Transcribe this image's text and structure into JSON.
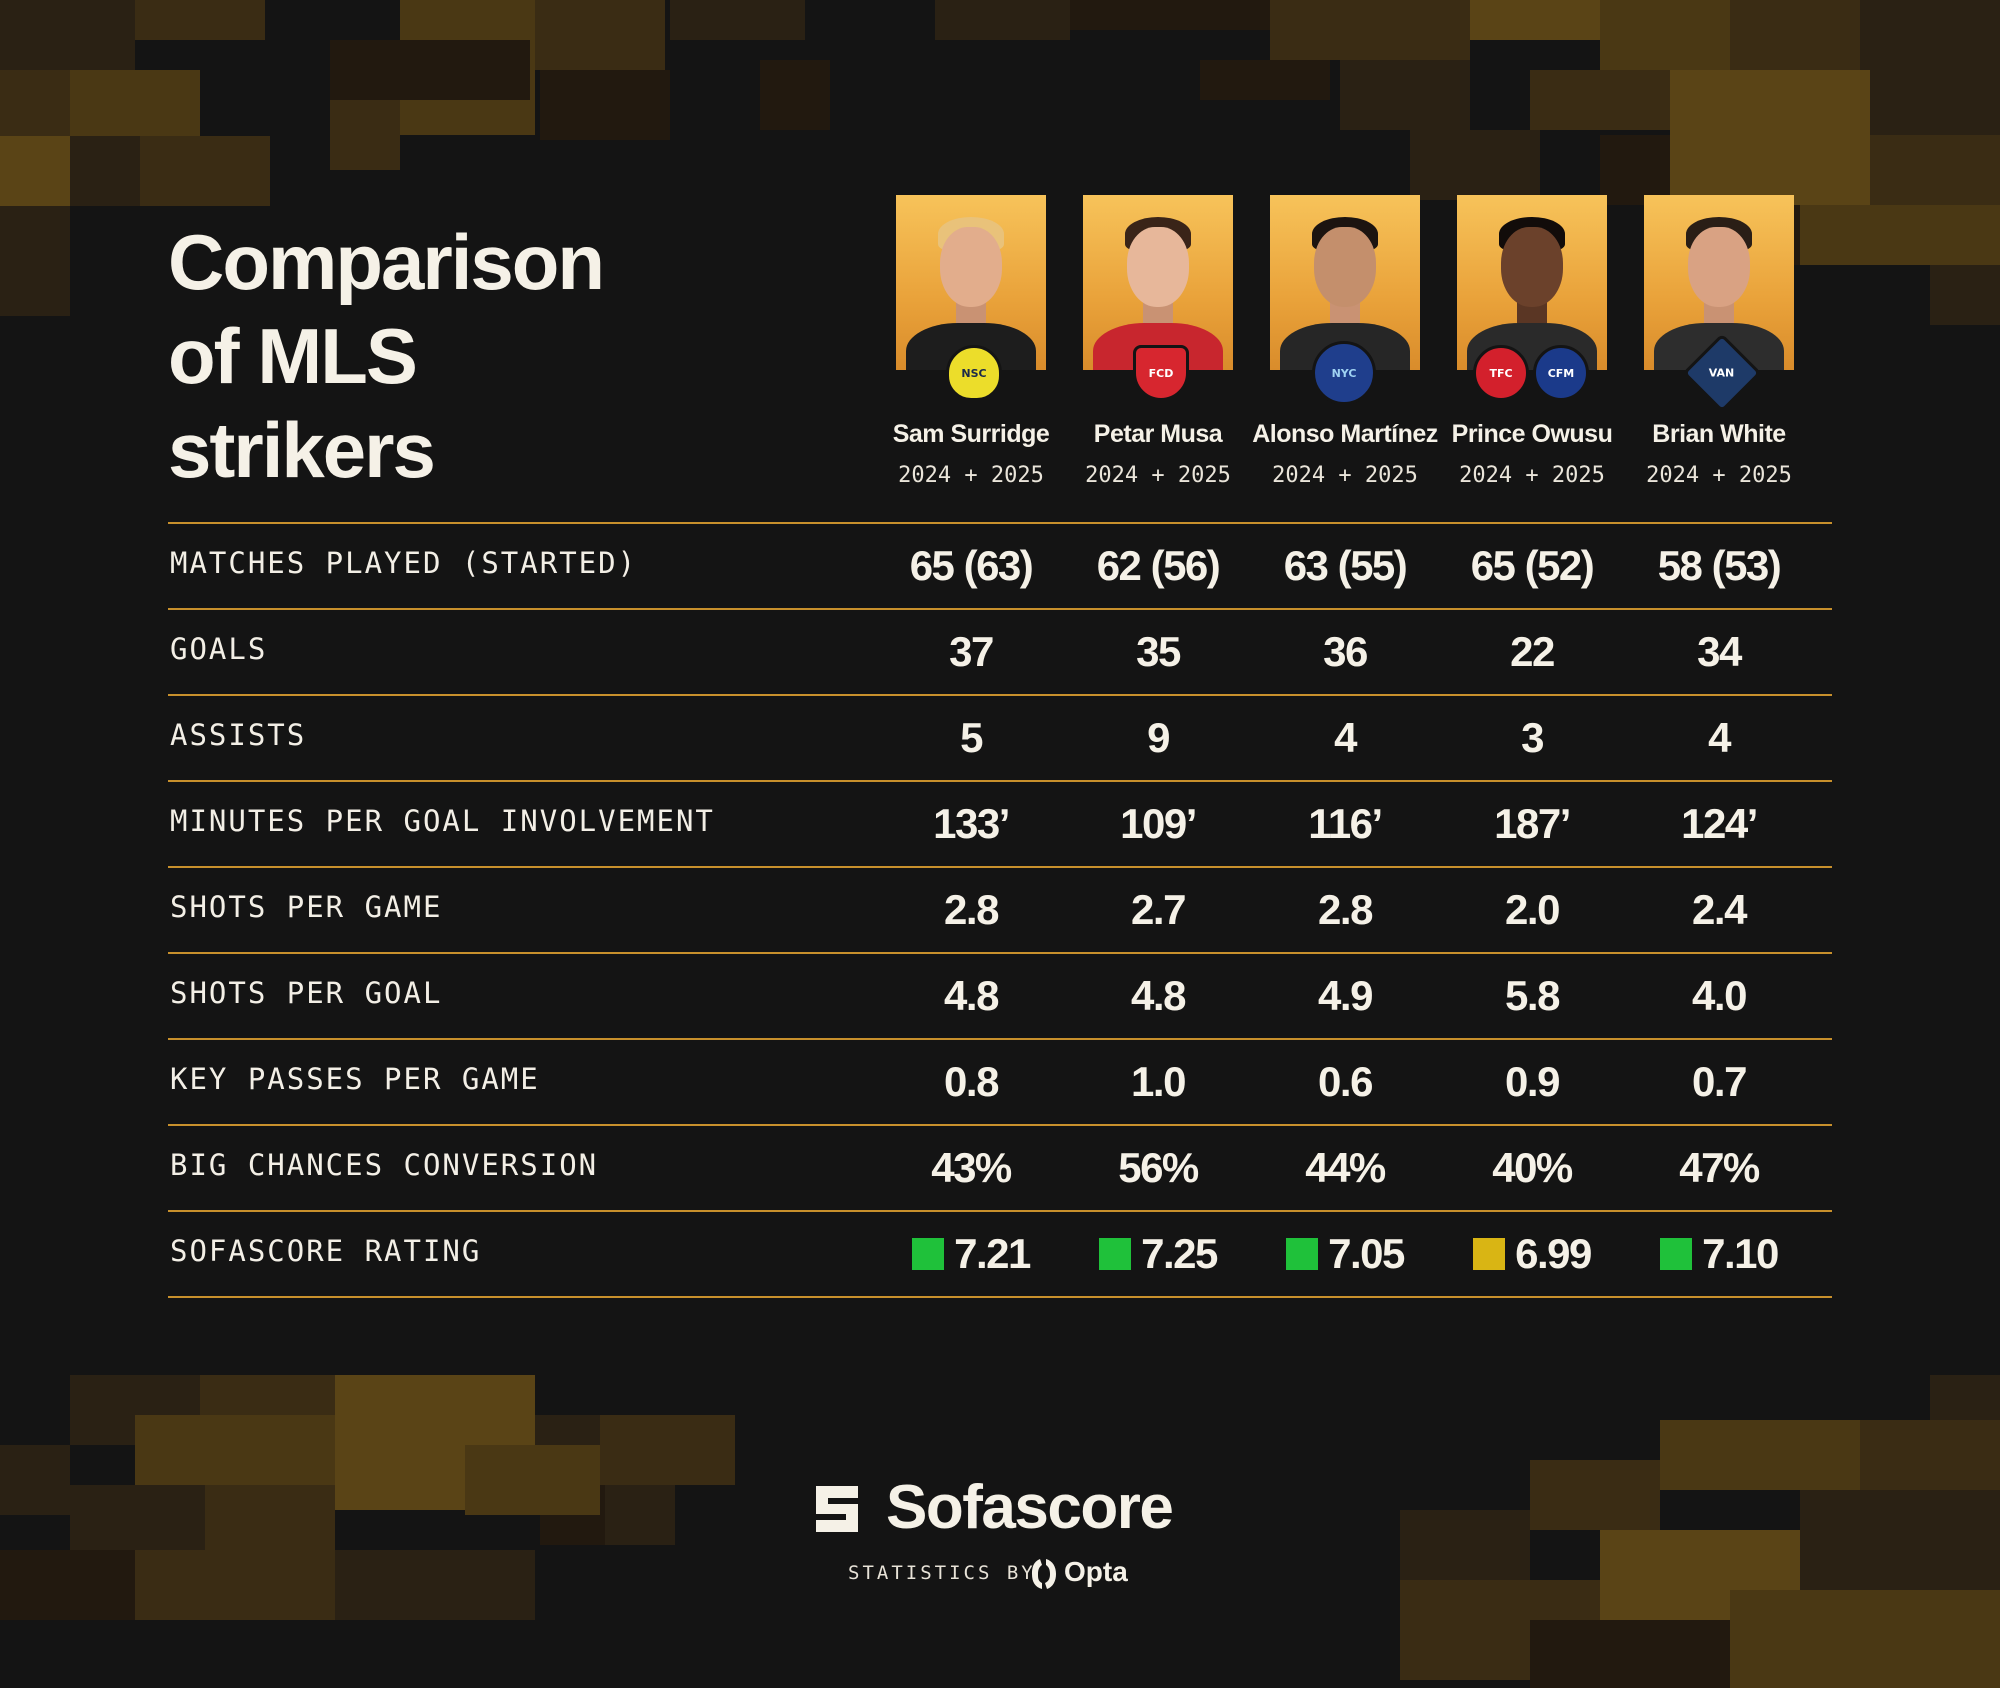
{
  "title": "Comparison of MLS strikers",
  "title_lines": [
    "Comparison",
    "of MLS",
    "strikers"
  ],
  "players": [
    {
      "name": "Sam Surridge",
      "season": "2024 + 2025",
      "club_badge_icon": "nashville-sc-badge-icon"
    },
    {
      "name": "Petar Musa",
      "season": "2024 + 2025",
      "club_badge_icon": "fc-dallas-badge-icon"
    },
    {
      "name": "Alonso Martínez",
      "season": "2024 + 2025",
      "club_badge_icon": "nycfc-badge-icon"
    },
    {
      "name": "Prince Owusu",
      "season": "2024 + 2025",
      "club_badge_icon": "toronto-fc-and-cf-montreal-badges-icon"
    },
    {
      "name": "Brian White",
      "season": "2024 + 2025",
      "club_badge_icon": "vancouver-whitecaps-badge-icon"
    }
  ],
  "stats": [
    {
      "label": "MATCHES PLAYED (STARTED)",
      "values": [
        "65 (63)",
        "62 (56)",
        "63 (55)",
        "65 (52)",
        "58 (53)"
      ]
    },
    {
      "label": "GOALS",
      "values": [
        "37",
        "35",
        "36",
        "22",
        "34"
      ]
    },
    {
      "label": "ASSISTS",
      "values": [
        "5",
        "9",
        "4",
        "3",
        "4"
      ]
    },
    {
      "label": "MINUTES PER GOAL INVOLVEMENT",
      "values": [
        "133’",
        "109’",
        "116’",
        "187’",
        "124’"
      ]
    },
    {
      "label": "SHOTS PER GAME",
      "values": [
        "2.8",
        "2.7",
        "2.8",
        "2.0",
        "2.4"
      ]
    },
    {
      "label": "SHOTS PER GOAL",
      "values": [
        "4.8",
        "4.8",
        "4.9",
        "5.8",
        "4.0"
      ]
    },
    {
      "label": "KEY PASSES PER GAME",
      "values": [
        "0.8",
        "1.0",
        "0.6",
        "0.9",
        "0.7"
      ]
    },
    {
      "label": "BIG CHANCES CONVERSION",
      "values": [
        "43%",
        "56%",
        "44%",
        "40%",
        "47%"
      ]
    }
  ],
  "rating": {
    "label": "SOFASCORE RATING",
    "values": [
      "7.21",
      "7.25",
      "7.05",
      "6.99",
      "7.10"
    ],
    "colors": [
      "#1fc13a",
      "#1fc13a",
      "#1fc13a",
      "#d9b514",
      "#1fc13a"
    ]
  },
  "footer": {
    "brand": "Sofascore",
    "credit": "STATISTICS BY",
    "provider": "Opta"
  },
  "colors": {
    "background": "#141414",
    "accent_line": "#c8902c",
    "text": "#f3efe6",
    "rating_good": "#1fc13a",
    "rating_mid": "#d9b514"
  }
}
